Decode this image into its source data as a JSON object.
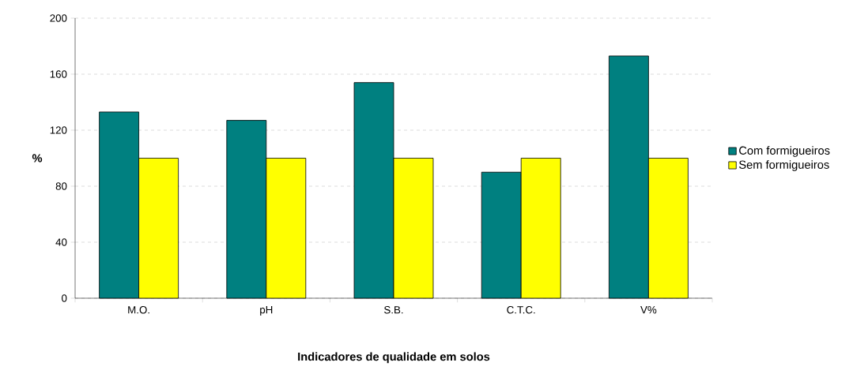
{
  "chart_data": {
    "type": "bar",
    "xlabel": "Indicadores de qualidade em solos",
    "ylabel": "%",
    "categories": [
      "M.O.",
      "pH",
      "S.B.",
      "C.T.C.",
      "V%"
    ],
    "series": [
      {
        "name": "Com formigueiros",
        "color": "#008080",
        "values": [
          133,
          127,
          154,
          90,
          173
        ]
      },
      {
        "name": "Sem formigueiros",
        "color": "#ffff00",
        "values": [
          100,
          100,
          100,
          100,
          100
        ]
      }
    ],
    "ylim": [
      0,
      200
    ],
    "yticks": [
      0,
      40,
      80,
      120,
      160,
      200
    ],
    "grid": "y",
    "legend": "right"
  }
}
